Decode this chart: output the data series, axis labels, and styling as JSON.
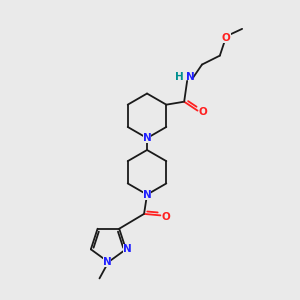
{
  "bg_color": "#eaeaea",
  "bond_color": "#1a1a1a",
  "N_color": "#2020ff",
  "O_color": "#ff2020",
  "NH_color": "#009090",
  "line_width": 1.3,
  "font_size": 7.5,
  "fig_size": [
    3.0,
    3.0
  ],
  "dpi": 100,
  "xlim": [
    0,
    10
  ],
  "ylim": [
    0,
    10
  ]
}
